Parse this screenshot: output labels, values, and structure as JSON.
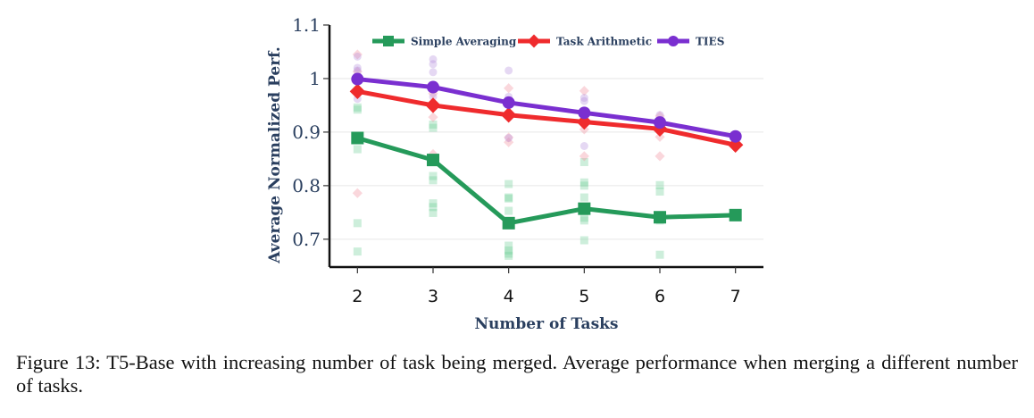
{
  "chart_data": {
    "type": "line",
    "title": "",
    "xlabel": "Number of Tasks",
    "ylabel": "Average Normalized Perf.",
    "x": [
      2,
      3,
      4,
      5,
      6,
      7
    ],
    "x_tick_labels": [
      "2",
      "3",
      "4",
      "5",
      "6",
      "7"
    ],
    "y_ticks": [
      0.7,
      0.8,
      0.9,
      1.0,
      1.1
    ],
    "y_tick_labels": [
      "0.7",
      "0.8",
      "0.9",
      "1",
      "1.1"
    ],
    "ylim": [
      0.648,
      1.1
    ],
    "xlim": [
      1.63,
      7.37
    ],
    "grid": "horizontal",
    "legend_position": "top",
    "series": [
      {
        "name": "Simple Averaging",
        "color": "#2ca02c",
        "line_color": "#259a5a",
        "marker": "square",
        "values": [
          0.889,
          0.848,
          0.73,
          0.757,
          0.741,
          0.745
        ],
        "scatter": [
          [
            0.946,
            0.942,
            0.868,
            0.73,
            0.677
          ],
          [
            0.914,
            0.908,
            0.818,
            0.81,
            0.767,
            0.76,
            0.749
          ],
          [
            0.803,
            0.778,
            0.776,
            0.753,
            0.688,
            0.679,
            0.673,
            0.669
          ],
          [
            0.844,
            0.806,
            0.8,
            0.778,
            0.74,
            0.735,
            0.698
          ],
          [
            0.801,
            0.789,
            0.735,
            0.671
          ],
          []
        ]
      },
      {
        "name": "Task Arithmetic",
        "color": "#ef2b2d",
        "marker": "diamond",
        "values": [
          0.976,
          0.95,
          0.932,
          0.919,
          0.906,
          0.876
        ],
        "scatter": [
          [
            1.045,
            1.013,
            0.786
          ],
          [
            0.972,
            0.928,
            0.859
          ],
          [
            0.982,
            0.89,
            0.881
          ],
          [
            0.977,
            0.905,
            0.855
          ],
          [
            0.93,
            0.891,
            0.855
          ],
          []
        ]
      },
      {
        "name": "TIES",
        "color": "#7a2fd0",
        "marker": "circle",
        "values": [
          0.999,
          0.984,
          0.955,
          0.936,
          0.918,
          0.892
        ],
        "scatter": [
          [
            1.041,
            1.02,
            1.015,
            0.962
          ],
          [
            1.036,
            1.027,
            1.012,
            0.966
          ],
          [
            1.015,
            0.966,
            0.889
          ],
          [
            0.964,
            0.958,
            0.874
          ],
          [
            0.932
          ],
          []
        ]
      }
    ]
  },
  "caption": {
    "text": "Figure 13:  T5-Base with increasing number of task being merged.  Average performance when merging a different number of tasks."
  }
}
